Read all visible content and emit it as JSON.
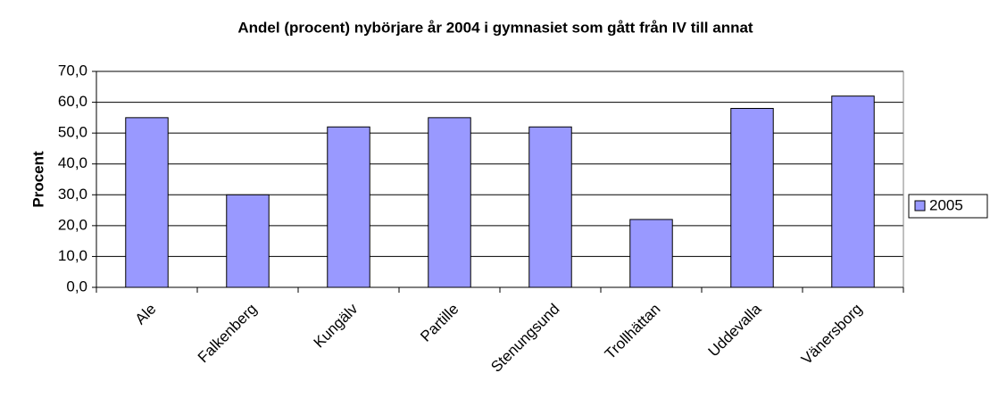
{
  "chart_data": {
    "type": "bar",
    "title": "Andel (procent) nybörjare år 2004 i gymnasiet som gått från IV till annat",
    "y_label": "Procent",
    "categories": [
      "Ale",
      "Falkenberg",
      "Kungälv",
      "Partille",
      "Stenungsund",
      "Trollhättan",
      "Uddevalla",
      "Vänersborg"
    ],
    "series": [
      {
        "name": "2005",
        "color": "#9999ff",
        "values": [
          55,
          30,
          52,
          55,
          52,
          22,
          58,
          62
        ]
      }
    ],
    "ylim": [
      0,
      70
    ],
    "yticks": [
      {
        "value": 0,
        "label": "0,0"
      },
      {
        "value": 10,
        "label": "10,0"
      },
      {
        "value": 20,
        "label": "20,0"
      },
      {
        "value": 30,
        "label": "30,0"
      },
      {
        "value": 40,
        "label": "40,0"
      },
      {
        "value": 50,
        "label": "50,0"
      },
      {
        "value": 60,
        "label": "60,0"
      },
      {
        "value": 70,
        "label": "70,0"
      }
    ],
    "grid": true,
    "legend": "right"
  }
}
